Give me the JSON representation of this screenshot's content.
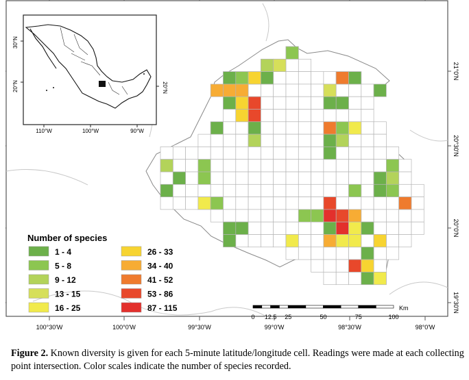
{
  "map": {
    "lon_ticks": [
      "100°30'W",
      "100°0'W",
      "99°30'W",
      "99°0'W",
      "98°30'W",
      "98°0'W"
    ],
    "lat_ticks": [
      "21°0'N",
      "20°30'N",
      "20°0'N",
      "19°30'N"
    ],
    "legend": {
      "title": "Number of species",
      "classes": [
        {
          "label": "1 - 4",
          "color": "#6cb04a"
        },
        {
          "label": "5 - 8",
          "color": "#8cc651"
        },
        {
          "label": "9 - 12",
          "color": "#b3d35a"
        },
        {
          "label": "13 - 15",
          "color": "#d6df5a"
        },
        {
          "label": "16 - 25",
          "color": "#f1ea4c"
        },
        {
          "label": "26 - 33",
          "color": "#f7d431"
        },
        {
          "label": "34 - 40",
          "color": "#f7ac34"
        },
        {
          "label": "41 - 52",
          "color": "#ef7b2e"
        },
        {
          "label": "53 - 86",
          "color": "#e8482b"
        },
        {
          "label": "87 - 115",
          "color": "#e3302c"
        }
      ]
    },
    "scale_bar": {
      "labels": [
        "0",
        "12.5",
        "25",
        "50",
        "75",
        "100"
      ],
      "unit": "Km"
    },
    "inset": {
      "lon_ticks": [
        "110°W",
        "100°W",
        "90°W"
      ],
      "lat_ticks": [
        "30°N",
        "20°N"
      ]
    }
  },
  "caption": {
    "label": "Figure 2.",
    "text": " Known diversity is given for each 5-minute latitude/longitude cell. Readings were made at each collecting point intersection. Color scales indicate the number of species recorded."
  }
}
